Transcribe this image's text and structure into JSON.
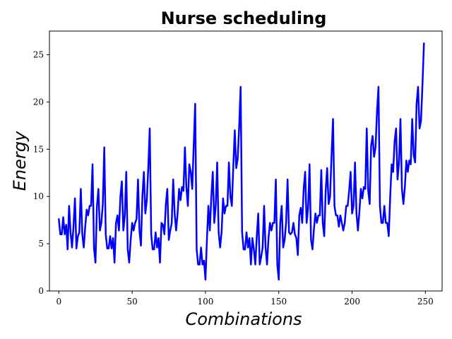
{
  "chart_data": {
    "type": "line",
    "title": "Nurse scheduling",
    "xlabel": "Combinations",
    "ylabel": "Energy",
    "xlim": [
      -6.4,
      261.4
    ],
    "ylim": [
      0,
      27.5
    ],
    "xticks": [
      0,
      50,
      100,
      150,
      200,
      250
    ],
    "yticks": [
      0,
      5,
      10,
      15,
      20,
      25
    ],
    "grid": false,
    "legend": "none",
    "colors": {
      "line": "#0000ff"
    },
    "series": [
      {
        "values": [
          7.6,
          6.0,
          6.0,
          7.8,
          6.0,
          7.0,
          4.4,
          9.0,
          6.2,
          4.6,
          6.8,
          9.8,
          4.5,
          5.8,
          6.2,
          10.8,
          6.0,
          4.6,
          6.8,
          8.6,
          8.0,
          9.0,
          9.0,
          13.4,
          4.5,
          3.0,
          9.0,
          10.8,
          6.4,
          7.2,
          9.2,
          15.2,
          6.0,
          4.5,
          4.5,
          5.8,
          4.5,
          5.6,
          3.0,
          7.2,
          8.0,
          6.4,
          10.0,
          11.6,
          6.4,
          8.0,
          12.6,
          4.4,
          3.0,
          5.4,
          7.2,
          6.4,
          7.2,
          7.6,
          11.8,
          6.4,
          4.8,
          10.0,
          12.6,
          8.2,
          9.6,
          13.0,
          17.2,
          6.0,
          4.4,
          4.4,
          6.2,
          4.6,
          5.6,
          3.0,
          7.2,
          7.0,
          6.0,
          9.2,
          10.8,
          5.4,
          6.4,
          7.2,
          11.8,
          8.2,
          6.4,
          8.2,
          10.8,
          9.6,
          11.0,
          10.6,
          15.2,
          11.0,
          9.0,
          13.4,
          12.6,
          10.8,
          15.4,
          19.8,
          4.4,
          2.8,
          2.8,
          4.6,
          2.8,
          3.2,
          1.2,
          5.4,
          9.0,
          6.4,
          10.0,
          12.6,
          7.2,
          9.0,
          13.6,
          6.2,
          4.6,
          6.2,
          9.8,
          8.2,
          9.0,
          9.0,
          13.6,
          10.0,
          9.0,
          13.2,
          17.0,
          13.0,
          14.0,
          17.4,
          21.6,
          6.2,
          4.4,
          4.4,
          6.2,
          4.6,
          5.6,
          2.8,
          5.6,
          4.4,
          2.8,
          5.8,
          8.2,
          2.8,
          3.6,
          4.6,
          9.0,
          4.6,
          2.8,
          5.6,
          7.2,
          6.4,
          7.2,
          7.2,
          11.8,
          2.8,
          1.2,
          7.2,
          9.0,
          4.6,
          5.4,
          7.2,
          11.8,
          6.2,
          6.0,
          6.2,
          7.2,
          6.0,
          5.6,
          3.8,
          8.0,
          8.8,
          7.2,
          10.8,
          12.6,
          7.2,
          8.8,
          13.4,
          5.4,
          4.4,
          6.6,
          8.2,
          7.2,
          8.0,
          8.0,
          12.8,
          7.2,
          5.8,
          10.6,
          13.0,
          9.2,
          10.0,
          14.4,
          18.2,
          9.0,
          8.0,
          8.0,
          6.8,
          8.0,
          7.2,
          6.4,
          7.2,
          9.0,
          9.0,
          10.6,
          12.6,
          8.2,
          9.0,
          13.6,
          8.2,
          6.4,
          8.4,
          10.8,
          9.8,
          11.0,
          10.8,
          17.2,
          10.6,
          9.2,
          15.4,
          16.4,
          14.2,
          15.2,
          19.0,
          21.6,
          9.0,
          7.2,
          7.2,
          9.0,
          7.2,
          7.2,
          5.8,
          10.0,
          13.4,
          12.6,
          15.8,
          17.2,
          11.8,
          13.6,
          18.2,
          10.8,
          9.2,
          11.0,
          13.8,
          12.6,
          13.8,
          13.4,
          18.2,
          14.4,
          13.6,
          19.8,
          21.6,
          17.2,
          18.0,
          21.8,
          26.2
        ]
      }
    ]
  }
}
